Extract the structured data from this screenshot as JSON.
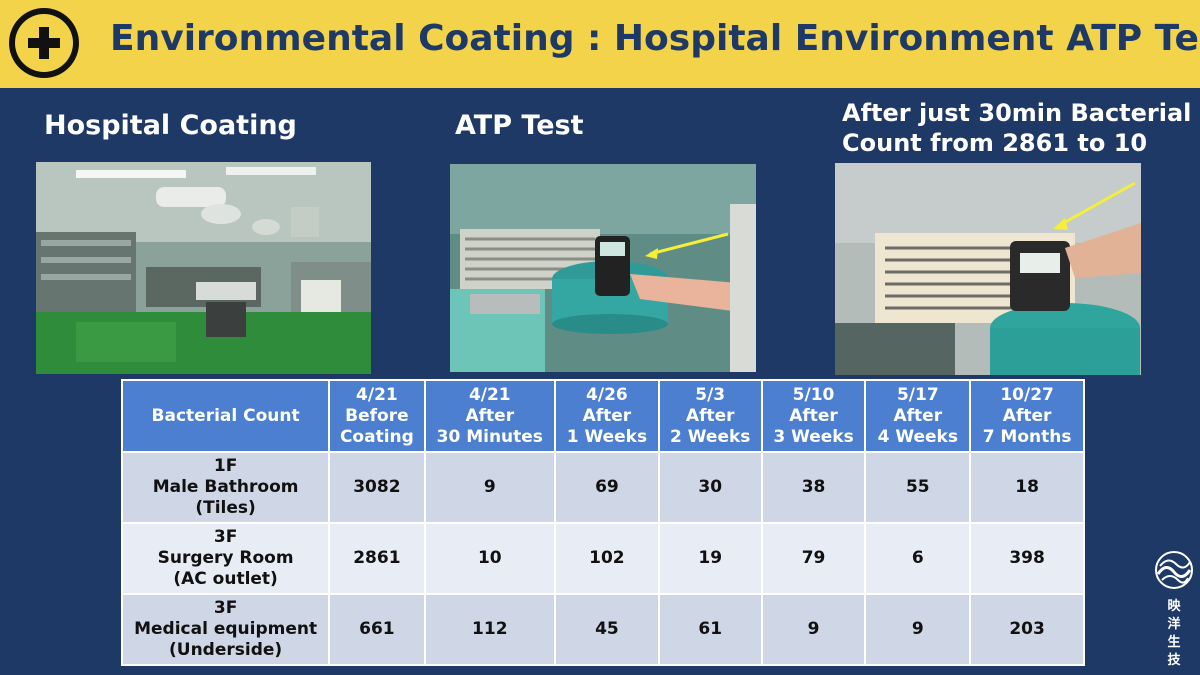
{
  "header": {
    "title": "Environmental Coating : Hospital Environment ATP Test"
  },
  "captions": {
    "coating": "Hospital Coating",
    "atp": "ATP Test",
    "result_line1": "After just 30min Bacterial",
    "result_line2": "Count from 2861 to 10"
  },
  "table": {
    "corner": "Bacterial Count",
    "columns": [
      [
        "4/21",
        "Before",
        "Coating"
      ],
      [
        "4/21",
        "After",
        "30 Minutes"
      ],
      [
        "4/26",
        "After",
        "1 Weeks"
      ],
      [
        "5/3",
        "After",
        "2 Weeks"
      ],
      [
        "5/10",
        "After",
        "3 Weeks"
      ],
      [
        "5/17",
        "After",
        "4 Weeks"
      ],
      [
        "10/27",
        "After",
        "7 Months"
      ]
    ],
    "rows": [
      {
        "label": [
          "1F",
          "Male Bathroom",
          "(Tiles)"
        ],
        "values": [
          "3082",
          "9",
          "69",
          "30",
          "38",
          "55",
          "18"
        ]
      },
      {
        "label": [
          "3F",
          "Surgery Room",
          "(AC outlet)"
        ],
        "values": [
          "2861",
          "10",
          "102",
          "19",
          "79",
          "6",
          "398"
        ]
      },
      {
        "label": [
          "3F",
          "Medical equipment",
          "(Underside)"
        ],
        "values": [
          "661",
          "112",
          "45",
          "61",
          "9",
          "9",
          "203"
        ]
      }
    ]
  },
  "brand": {
    "chars": [
      "映",
      "洋",
      "生",
      "技"
    ]
  },
  "colors": {
    "header_bg": "#f3d34a",
    "page_bg": "#1f3966",
    "table_header": "#4c7fcf",
    "arrow": "#f5ee3a"
  }
}
